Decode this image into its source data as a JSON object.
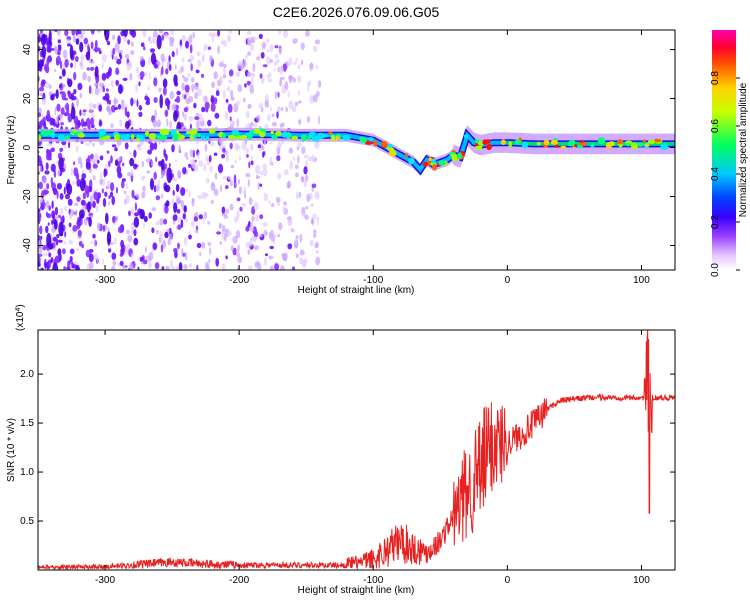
{
  "figure_title": "C2E6.2026.076.09.06.G05",
  "chart_data": [
    {
      "type": "heatmap",
      "title": "C2E6.2026.076.09.06.G05",
      "xlabel": "Height of straight line (km)",
      "ylabel": "Frequency (Hz)",
      "xlim": [
        -350,
        125
      ],
      "ylim": [
        -50,
        48
      ],
      "xticks": [
        -300,
        -200,
        -100,
        0,
        100
      ],
      "xtick_labels": [
        "-300",
        "-200",
        "-100",
        "0",
        "100"
      ],
      "yticks": [
        -40,
        -20,
        0,
        20,
        40
      ],
      "ytick_labels": [
        "-40",
        "-20",
        "0",
        "20",
        "40"
      ],
      "ridge": {
        "x": [
          -350,
          -300,
          -250,
          -200,
          -150,
          -120,
          -100,
          -90,
          -80,
          -70,
          -65,
          -60,
          -55,
          -50,
          -45,
          -40,
          -35,
          -30,
          -25,
          -20,
          -10,
          0,
          20,
          50,
          100,
          125
        ],
        "y": [
          5,
          5,
          5,
          5.5,
          5,
          5,
          3,
          0,
          -3,
          -6,
          -9,
          -5,
          -7,
          -6,
          -5,
          -3,
          -4,
          5,
          2,
          1,
          2,
          2,
          1.5,
          1.5,
          1.5,
          1.5
        ]
      },
      "noise_region_x": [
        -350,
        -140
      ],
      "colorbar": {
        "label": "Normalized spectral amplitude",
        "range": [
          0,
          1
        ],
        "ticks": [
          0.0,
          0.2,
          0.4,
          0.6,
          0.8
        ],
        "tick_labels": [
          "0.0",
          "0.2",
          "0.4",
          "0.6",
          "0.8"
        ],
        "colors": [
          "#ffffff",
          "#c080ff",
          "#6a00ff",
          "#1030ff",
          "#00e0ff",
          "#00ff40",
          "#ffff00",
          "#ff8000",
          "#ff0000",
          "#ff00a0"
        ]
      }
    },
    {
      "type": "line",
      "xlabel": "Height of straight line (km)",
      "ylabel": "SNR (10 * v/v)",
      "exponent_label": "(x10",
      "exponent_power": "4",
      "exponent_close": ")",
      "xlim": [
        -350,
        125
      ],
      "ylim": [
        0,
        2.45
      ],
      "xticks": [
        -300,
        -200,
        -100,
        0,
        100
      ],
      "xtick_labels": [
        "-300",
        "-200",
        "-100",
        "0",
        "100"
      ],
      "yticks": [
        0.5,
        1.0,
        1.5,
        2.0
      ],
      "ytick_labels": [
        "0.5",
        "1.0",
        "1.5",
        "2.0"
      ],
      "series": [
        {
          "name": "SNR",
          "color": "#e82020",
          "x": [
            -350,
            -300,
            -250,
            -220,
            -200,
            -150,
            -120,
            -100,
            -90,
            -80,
            -70,
            -60,
            -50,
            -40,
            -30,
            -20,
            -15,
            -10,
            0,
            10,
            20,
            30,
            40,
            60,
            80,
            100,
            103,
            105,
            107,
            110,
            125
          ],
          "y": [
            0.02,
            0.03,
            0.08,
            0.06,
            0.05,
            0.05,
            0.05,
            0.1,
            0.2,
            0.3,
            0.22,
            0.18,
            0.3,
            0.55,
            0.8,
            1.0,
            1.2,
            1.3,
            1.3,
            1.38,
            1.5,
            1.65,
            1.73,
            1.76,
            1.76,
            1.76,
            1.76,
            1.76,
            1.76,
            1.76,
            1.76
          ]
        }
      ]
    }
  ]
}
